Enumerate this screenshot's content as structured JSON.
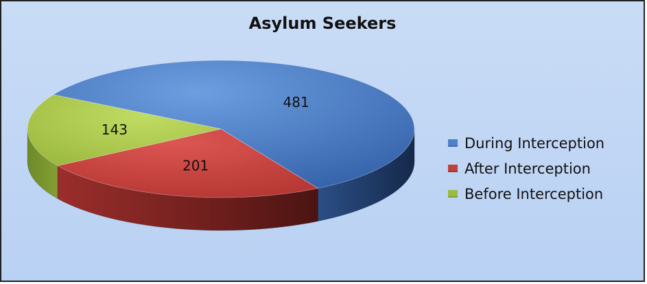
{
  "chart_data": {
    "type": "pie",
    "title": "Asylum Seekers",
    "categories": [
      "During Interception",
      "After Interception",
      "Before Interception"
    ],
    "values": [
      481,
      201,
      143
    ],
    "colors": [
      "#4f80c9",
      "#c0403c",
      "#9bbb3f"
    ],
    "legend_position": "right",
    "style": "3d"
  },
  "legend": {
    "items": [
      {
        "label": "During Interception",
        "color": "#4f80c9"
      },
      {
        "label": "After Interception",
        "color": "#c0403c"
      },
      {
        "label": "Before Interception",
        "color": "#9bbb3f"
      }
    ]
  }
}
